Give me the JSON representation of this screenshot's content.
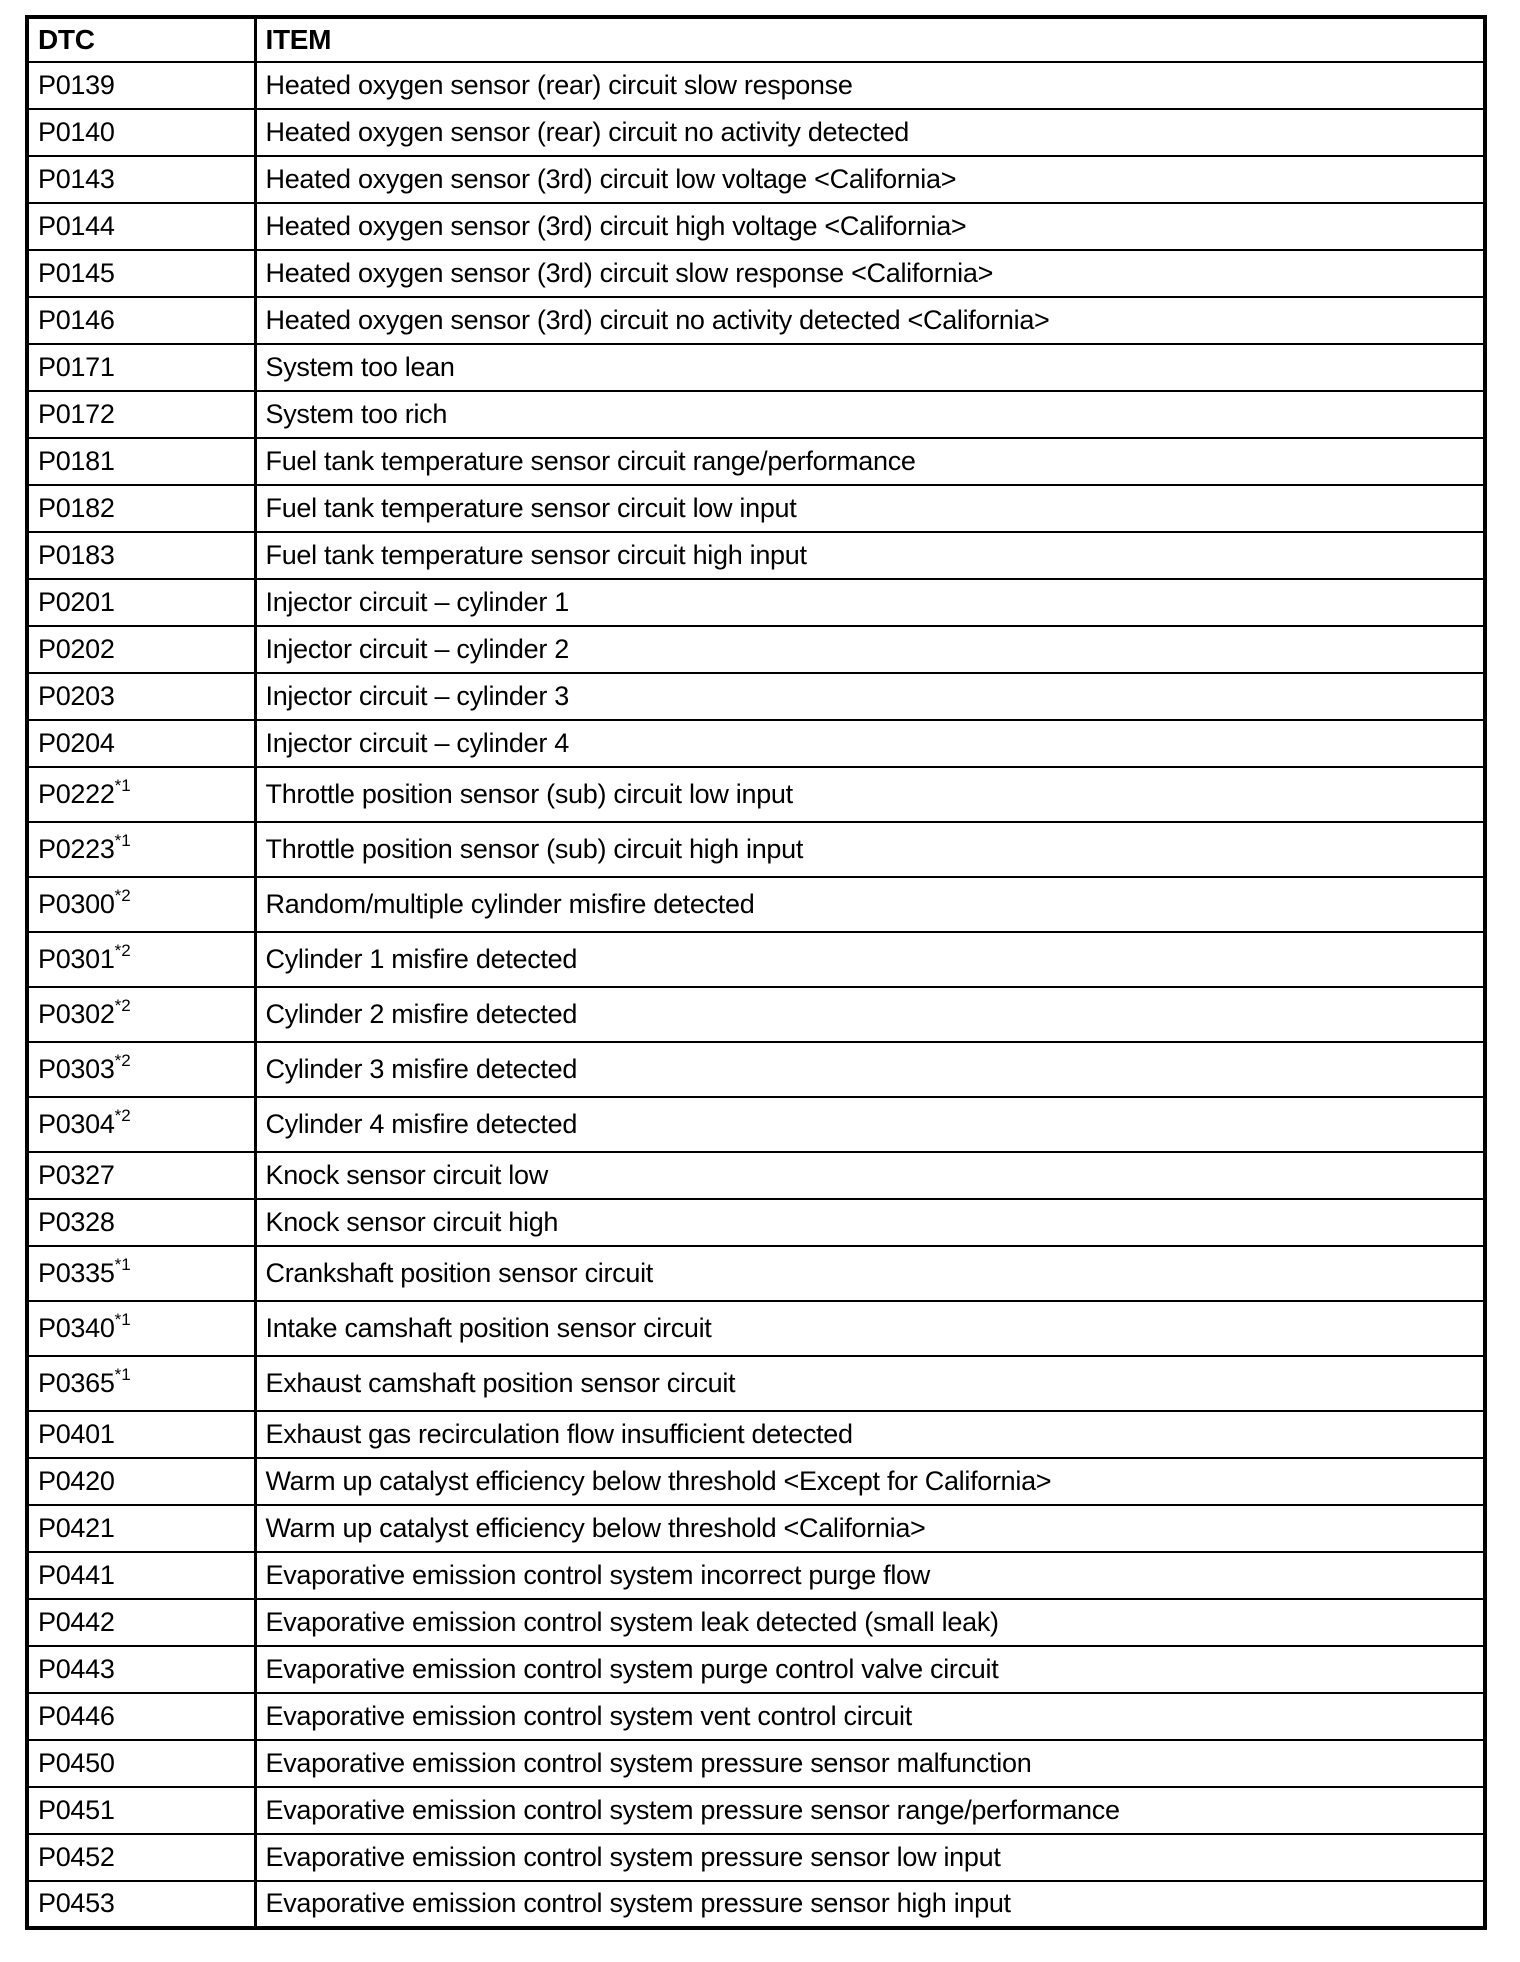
{
  "colors": {
    "text": "#000000",
    "border": "#000000",
    "background": "#ffffff"
  },
  "document": {
    "table": {
      "columns": [
        {
          "label": "DTC"
        },
        {
          "label": "ITEM"
        }
      ],
      "rows": [
        {
          "code": "P0139",
          "sup": "",
          "item": "Heated oxygen sensor (rear) circuit slow response"
        },
        {
          "code": "P0140",
          "sup": "",
          "item": "Heated oxygen sensor (rear) circuit no activity detected"
        },
        {
          "code": "P0143",
          "sup": "",
          "item": "Heated oxygen sensor (3rd) circuit low voltage <California>"
        },
        {
          "code": "P0144",
          "sup": "",
          "item": "Heated oxygen sensor (3rd) circuit high voltage <California>"
        },
        {
          "code": "P0145",
          "sup": "",
          "item": "Heated oxygen sensor (3rd) circuit slow response <California>"
        },
        {
          "code": "P0146",
          "sup": "",
          "item": "Heated oxygen sensor (3rd) circuit no activity detected <California>"
        },
        {
          "code": "P0171",
          "sup": "",
          "item": "System too lean"
        },
        {
          "code": "P0172",
          "sup": "",
          "item": "System too rich"
        },
        {
          "code": "P0181",
          "sup": "",
          "item": "Fuel tank temperature sensor circuit range/performance"
        },
        {
          "code": "P0182",
          "sup": "",
          "item": "Fuel tank temperature sensor circuit low input"
        },
        {
          "code": "P0183",
          "sup": "",
          "item": "Fuel tank temperature sensor circuit high input"
        },
        {
          "code": "P0201",
          "sup": "",
          "item": "Injector circuit – cylinder 1"
        },
        {
          "code": "P0202",
          "sup": "",
          "item": "Injector circuit – cylinder 2"
        },
        {
          "code": "P0203",
          "sup": "",
          "item": "Injector circuit – cylinder 3"
        },
        {
          "code": "P0204",
          "sup": "",
          "item": "Injector circuit – cylinder 4"
        },
        {
          "code": "P0222",
          "sup": "*1",
          "item": "Throttle position sensor (sub) circuit low input"
        },
        {
          "code": "P0223",
          "sup": "*1",
          "item": "Throttle position sensor (sub) circuit high input"
        },
        {
          "code": "P0300",
          "sup": "*2",
          "item": "Random/multiple cylinder misfire detected"
        },
        {
          "code": "P0301",
          "sup": "*2",
          "item": "Cylinder 1 misfire detected"
        },
        {
          "code": "P0302",
          "sup": "*2",
          "item": "Cylinder 2 misfire detected"
        },
        {
          "code": "P0303",
          "sup": "*2",
          "item": "Cylinder 3 misfire detected"
        },
        {
          "code": "P0304",
          "sup": "*2",
          "item": "Cylinder 4 misfire detected"
        },
        {
          "code": "P0327",
          "sup": "",
          "item": "Knock sensor circuit low"
        },
        {
          "code": "P0328",
          "sup": "",
          "item": "Knock sensor circuit high"
        },
        {
          "code": "P0335",
          "sup": "*1",
          "item": "Crankshaft position sensor circuit"
        },
        {
          "code": "P0340",
          "sup": "*1",
          "item": "Intake camshaft position sensor circuit"
        },
        {
          "code": "P0365",
          "sup": "*1",
          "item": "Exhaust camshaft position sensor circuit"
        },
        {
          "code": "P0401",
          "sup": "",
          "item": "Exhaust gas recirculation flow insufficient detected"
        },
        {
          "code": "P0420",
          "sup": "",
          "item": "Warm up catalyst efficiency below threshold <Except for California>"
        },
        {
          "code": "P0421",
          "sup": "",
          "item": "Warm up catalyst efficiency below threshold <California>"
        },
        {
          "code": "P0441",
          "sup": "",
          "item": "Evaporative emission control system incorrect purge flow"
        },
        {
          "code": "P0442",
          "sup": "",
          "item": "Evaporative emission control system leak detected (small leak)"
        },
        {
          "code": "P0443",
          "sup": "",
          "item": "Evaporative emission control system purge control valve circuit"
        },
        {
          "code": "P0446",
          "sup": "",
          "item": "Evaporative emission control system vent control circuit"
        },
        {
          "code": "P0450",
          "sup": "",
          "item": "Evaporative emission control system pressure sensor malfunction"
        },
        {
          "code": "P0451",
          "sup": "",
          "item": "Evaporative emission control system pressure sensor range/performance"
        },
        {
          "code": "P0452",
          "sup": "",
          "item": "Evaporative emission control system pressure sensor low input"
        },
        {
          "code": "P0453",
          "sup": "",
          "item": "Evaporative emission control system pressure sensor high input"
        }
      ]
    }
  }
}
